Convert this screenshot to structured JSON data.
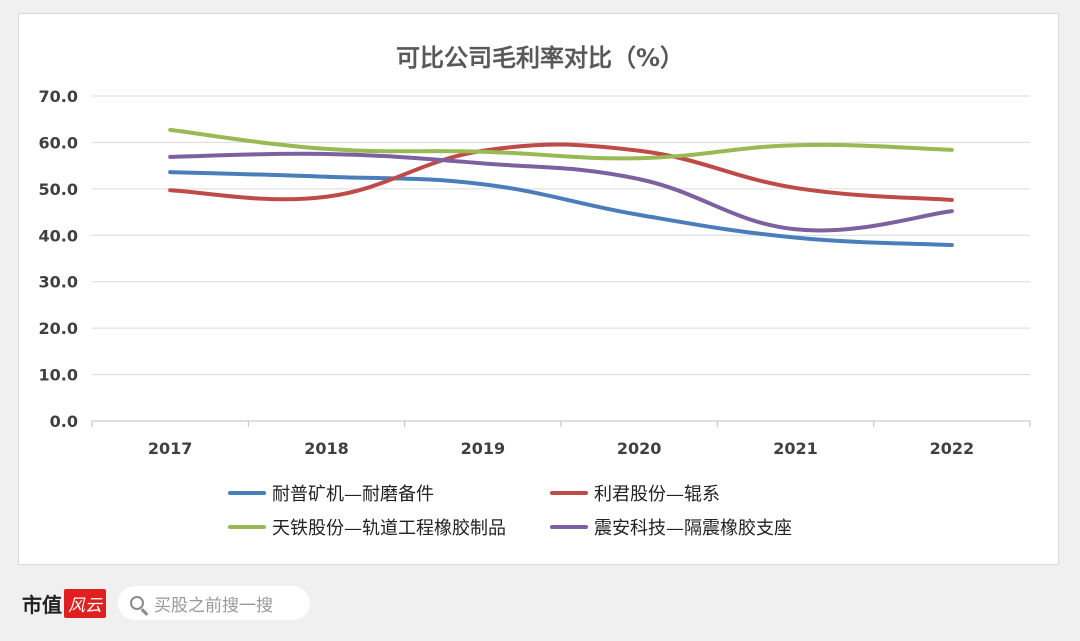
{
  "colors": {
    "blue": "#4a7ebb",
    "red": "#be4b48",
    "green": "#98b954",
    "purple": "#7d60a0",
    "grid": "#d9d9d9",
    "tick_text": "#404040"
  },
  "chart_data": {
    "type": "line",
    "title": "可比公司毛利率对比（%）",
    "xlabel": "",
    "ylabel": "",
    "categories": [
      "2017",
      "2018",
      "2019",
      "2020",
      "2021",
      "2022"
    ],
    "ylim": [
      0,
      70
    ],
    "yticks": [
      "0.0",
      "10.0",
      "20.0",
      "30.0",
      "40.0",
      "50.0",
      "60.0",
      "70.0"
    ],
    "grid": true,
    "smooth": true,
    "legend_position": "bottom",
    "series": [
      {
        "name": "耐普矿机—耐磨备件",
        "color_key": "blue",
        "values": [
          53.6,
          52.6,
          51.0,
          44.4,
          39.5,
          37.9
        ]
      },
      {
        "name": "利君股份—辊系",
        "color_key": "red",
        "values": [
          49.7,
          48.3,
          58.2,
          58.2,
          50.2,
          47.6
        ]
      },
      {
        "name": "天铁股份—轨道工程橡胶制品",
        "color_key": "green",
        "values": [
          62.7,
          58.6,
          58.0,
          56.6,
          59.4,
          58.4
        ]
      },
      {
        "name": "震安科技—隔震橡胶支座",
        "color_key": "purple",
        "values": [
          56.9,
          57.5,
          55.5,
          52.1,
          41.3,
          45.2
        ]
      }
    ]
  },
  "footer": {
    "brand_text": "市值",
    "brand_logo_text": "风云",
    "search_placeholder": "买股之前搜一搜"
  }
}
